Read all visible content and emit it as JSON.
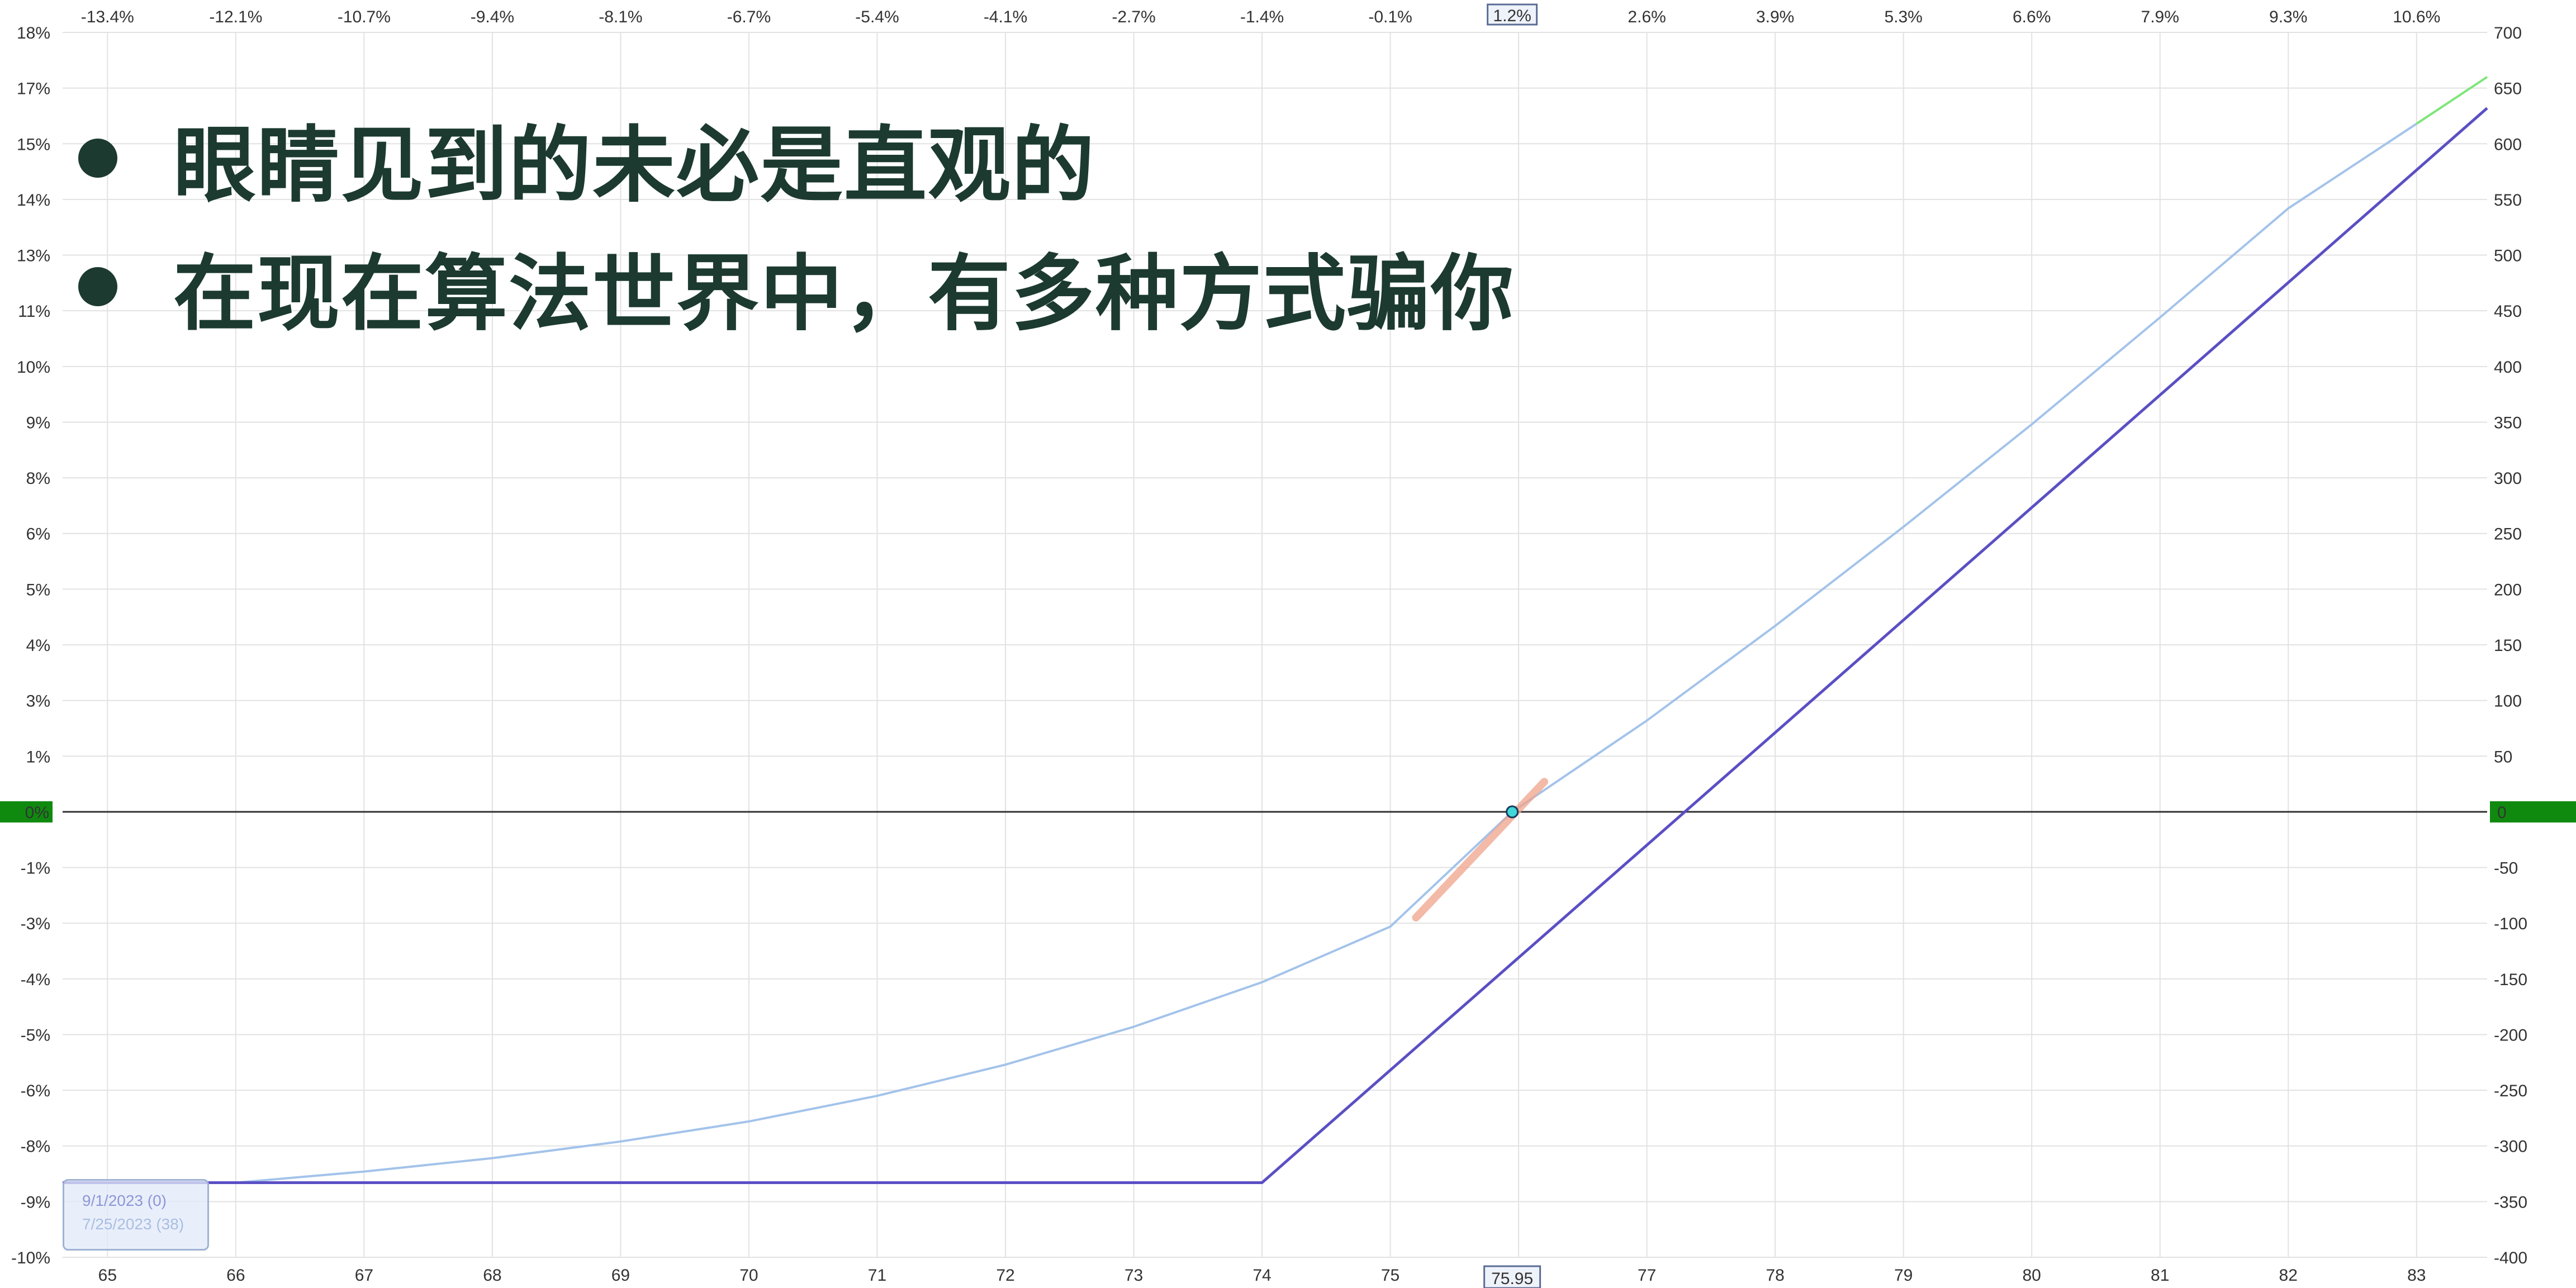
{
  "bullets": [
    "眼睛见到的未必是直观的",
    "在现在算法世界中，有多种方式骗你"
  ],
  "legend": [
    {
      "label": "9/1/2023 (0)",
      "color": "#8d96d8"
    },
    {
      "label": "7/25/2023 (38)",
      "color": "#a9bde4"
    }
  ],
  "colors": {
    "expiration_line": "#5b4fc4",
    "today_line": "#a3c3ea",
    "high_segment": "#7ee57a",
    "zero_badge": "#0f8a0f",
    "marker_fill": "#40d8d8",
    "slope_highlight": "#f0a38c",
    "badge_border": "#5a6d94",
    "badge_bg": "#eef2fa"
  },
  "chart_data": {
    "type": "line",
    "xlabel": "",
    "ylabel": "",
    "xlim": [
      64.65,
      83.55
    ],
    "ylim_right": [
      -400,
      700
    ],
    "x_ticks": [
      65,
      66,
      67,
      68,
      69,
      70,
      71,
      72,
      73,
      74,
      75,
      76,
      77,
      78,
      79,
      80,
      81,
      82,
      83
    ],
    "top_ticks": [
      {
        "x": 65,
        "label": "-13.4%"
      },
      {
        "x": 66,
        "label": "-12.1%"
      },
      {
        "x": 67,
        "label": "-10.7%"
      },
      {
        "x": 68,
        "label": "-9.4%"
      },
      {
        "x": 69,
        "label": "-8.1%"
      },
      {
        "x": 70,
        "label": "-6.7%"
      },
      {
        "x": 71,
        "label": "-5.4%"
      },
      {
        "x": 72,
        "label": "-4.1%"
      },
      {
        "x": 73,
        "label": "-2.7%"
      },
      {
        "x": 74,
        "label": "-1.4%"
      },
      {
        "x": 75,
        "label": "-0.1%"
      },
      {
        "x": 77,
        "label": "2.6%"
      },
      {
        "x": 78,
        "label": "3.9%"
      },
      {
        "x": 79,
        "label": "5.3%"
      },
      {
        "x": 80,
        "label": "6.6%"
      },
      {
        "x": 81,
        "label": "7.9%"
      },
      {
        "x": 82,
        "label": "9.3%"
      },
      {
        "x": 83,
        "label": "10.6%"
      }
    ],
    "left_ticks": [
      {
        "y": 700,
        "label": "18%"
      },
      {
        "y": 650,
        "label": "17%"
      },
      {
        "y": 600,
        "label": "15%"
      },
      {
        "y": 550,
        "label": "14%"
      },
      {
        "y": 500,
        "label": "13%"
      },
      {
        "y": 450,
        "label": "11%"
      },
      {
        "y": 400,
        "label": "10%"
      },
      {
        "y": 350,
        "label": "9%"
      },
      {
        "y": 300,
        "label": "8%"
      },
      {
        "y": 250,
        "label": "6%"
      },
      {
        "y": 200,
        "label": "5%"
      },
      {
        "y": 150,
        "label": "4%"
      },
      {
        "y": 100,
        "label": "3%"
      },
      {
        "y": 50,
        "label": "1%"
      },
      {
        "y": -50,
        "label": "(-1%"
      },
      {
        "y": -100,
        "label": "-3%"
      },
      {
        "y": -150,
        "label": "-4%"
      },
      {
        "y": -200,
        "label": "-5%"
      },
      {
        "y": -250,
        "label": "-6%"
      },
      {
        "y": -300,
        "label": "-8%"
      },
      {
        "y": -350,
        "label": "-9%"
      },
      {
        "y": -400,
        "label": "-10%"
      }
    ],
    "right_ticks": [
      700,
      650,
      600,
      550,
      500,
      450,
      400,
      350,
      300,
      250,
      200,
      150,
      100,
      50,
      -50,
      -100,
      -150,
      -200,
      -250,
      -300,
      -350,
      -400
    ],
    "zero_labels": {
      "left": "0%",
      "right": "0"
    },
    "current_price": {
      "x": 75.95,
      "x_label": "75.95",
      "top_label": "1.2%",
      "y": 0
    },
    "series": [
      {
        "name": "9/1/2023 (0)",
        "points": [
          [
            64.65,
            -333
          ],
          [
            74,
            -333
          ],
          [
            83.55,
            632
          ]
        ]
      },
      {
        "name": "7/25/2023 (38)",
        "points": [
          [
            64.65,
            -333
          ],
          [
            65.5,
            -333
          ],
          [
            66,
            -333
          ],
          [
            67,
            -323
          ],
          [
            68,
            -311
          ],
          [
            69,
            -296
          ],
          [
            70,
            -278
          ],
          [
            71,
            -255
          ],
          [
            72,
            -227
          ],
          [
            73,
            -193
          ],
          [
            74,
            -153
          ],
          [
            75,
            -103
          ],
          [
            75.95,
            0
          ],
          [
            77,
            82
          ],
          [
            78,
            167
          ],
          [
            79,
            256
          ],
          [
            80,
            348
          ],
          [
            81,
            444
          ],
          [
            82,
            542
          ],
          [
            83,
            618
          ],
          [
            83.55,
            660
          ]
        ]
      }
    ]
  }
}
